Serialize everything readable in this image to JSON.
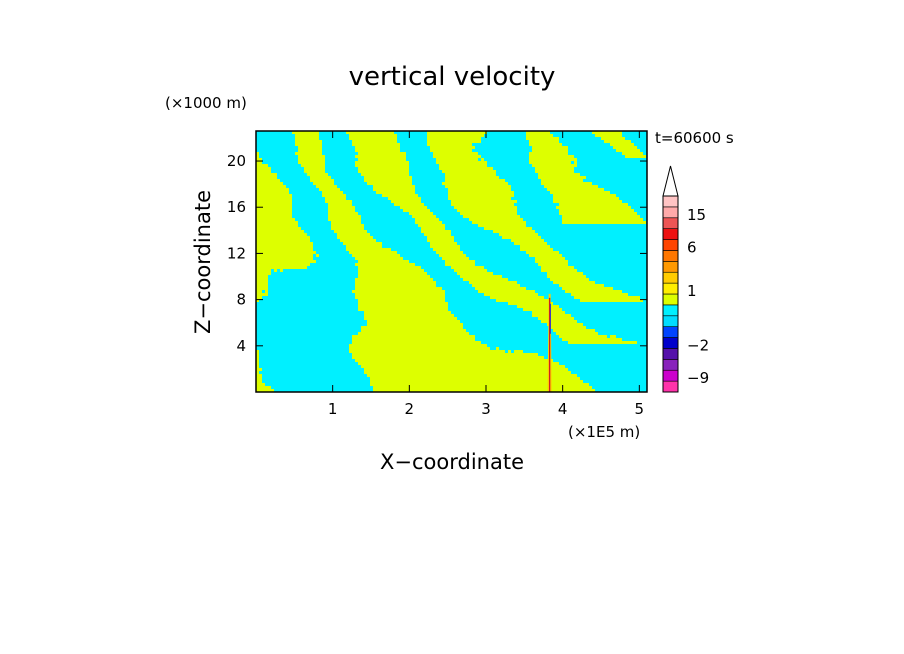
{
  "chart_data": {
    "type": "heatmap",
    "title": "vertical velocity",
    "xlabel": "X−coordinate",
    "ylabel": "Z−coordinate",
    "x_unit": "(×1E5 m)",
    "y_unit": "(×1000 m)",
    "time_label": "t=60600 s",
    "xlim": [
      0,
      5.1
    ],
    "ylim": [
      0,
      22.6
    ],
    "x_ticks": [
      1,
      2,
      3,
      4,
      5
    ],
    "y_ticks": [
      4,
      8,
      12,
      16,
      20
    ],
    "colorbar": {
      "levels": [
        -12,
        -9,
        -6,
        -3,
        -2,
        -1,
        -0.5,
        0,
        0.5,
        1,
        1.5,
        2,
        4,
        6,
        9,
        12,
        15,
        18,
        24
      ],
      "colors": [
        "#ff33aa",
        "#cc00cc",
        "#8822bb",
        "#5511aa",
        "#0000cc",
        "#0044ff",
        "#00ddff",
        "#00f0ff",
        "#ddff00",
        "#ffee00",
        "#ffcc00",
        "#ff9900",
        "#ff7700",
        "#ff4400",
        "#ee1111",
        "#ee5555",
        "#ffaaaa",
        "#ffc4c4"
      ],
      "labels": [
        {
          "value": 15,
          "text": "15"
        },
        {
          "value": 6,
          "text": "6"
        },
        {
          "value": 1,
          "text": "1"
        },
        {
          "value": -2,
          "text": "−2"
        },
        {
          "value": -9,
          "text": "−9"
        }
      ]
    },
    "field": {
      "description": "Banded pattern of weak updrafts (yellow, ~0 to 0.5) and weak downdrafts (cyan, ~-0.5 to 0); strong narrow updraft column near x=3.83 below z=8.5",
      "colors": {
        "positive": "#ddff00",
        "negative": "#00f0ff"
      },
      "jet": {
        "x": 3.83,
        "z_top": 8.5
      }
    }
  }
}
